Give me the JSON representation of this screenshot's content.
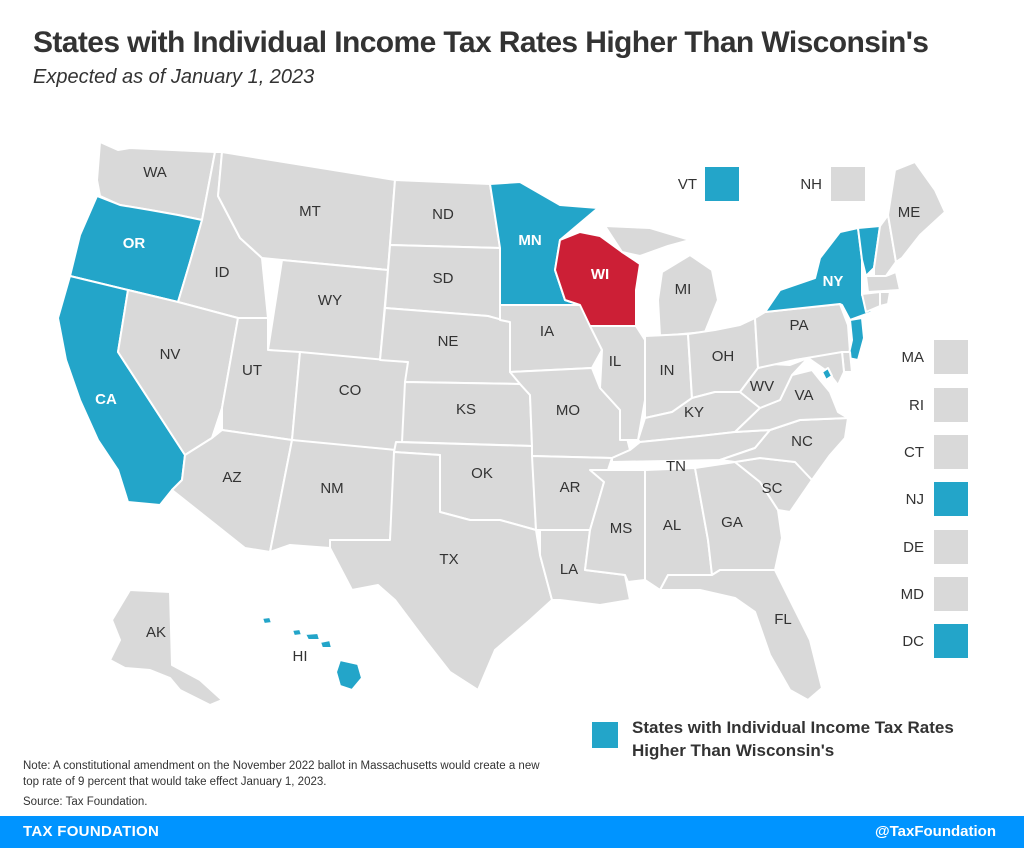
{
  "header": {
    "title": "States with Individual Income Tax Rates Higher Than Wisconsin's",
    "subtitle": "Expected as of January 1, 2023"
  },
  "colors": {
    "higher": "#23a5c9",
    "wisconsin": "#cc1f36",
    "other": "#d9d9d9",
    "footer": "#0094ff"
  },
  "states": {
    "WA": "other",
    "OR": "higher",
    "CA": "higher",
    "ID": "other",
    "NV": "other",
    "MT": "other",
    "WY": "other",
    "UT": "other",
    "AZ": "other",
    "CO": "other",
    "NM": "other",
    "ND": "other",
    "SD": "other",
    "NE": "other",
    "KS": "other",
    "OK": "other",
    "TX": "other",
    "MN": "higher",
    "IA": "other",
    "MO": "other",
    "AR": "other",
    "LA": "other",
    "WI": "wisconsin",
    "IL": "other",
    "MI": "other",
    "IN": "other",
    "OH": "other",
    "KY": "other",
    "TN": "other",
    "MS": "other",
    "AL": "other",
    "GA": "other",
    "FL": "other",
    "SC": "other",
    "NC": "other",
    "VA": "other",
    "WV": "other",
    "PA": "other",
    "NY": "higher",
    "VT": "higher",
    "NH": "other",
    "ME": "other",
    "MA": "other",
    "RI": "other",
    "CT": "other",
    "NJ": "higher",
    "DE": "other",
    "MD": "other",
    "DC": "higher",
    "AK": "other",
    "HI": "higher"
  },
  "callouts": [
    {
      "label": "VT",
      "category": "higher"
    },
    {
      "label": "NH",
      "category": "other"
    },
    {
      "label": "MA",
      "category": "other"
    },
    {
      "label": "RI",
      "category": "other"
    },
    {
      "label": "CT",
      "category": "other"
    },
    {
      "label": "NJ",
      "category": "higher"
    },
    {
      "label": "DE",
      "category": "other"
    },
    {
      "label": "MD",
      "category": "other"
    },
    {
      "label": "DC",
      "category": "higher"
    }
  ],
  "legend": {
    "label": "States with Individual Income Tax Rates Higher Than Wisconsin's"
  },
  "note": "Note: A constitutional amendment on the November 2022 ballot in Massachusetts would create a new top rate of 9 percent that would take effect January 1, 2023.",
  "source": "Source: Tax Foundation.",
  "footer": {
    "left": "TAX FOUNDATION",
    "right": "@TaxFoundation"
  }
}
